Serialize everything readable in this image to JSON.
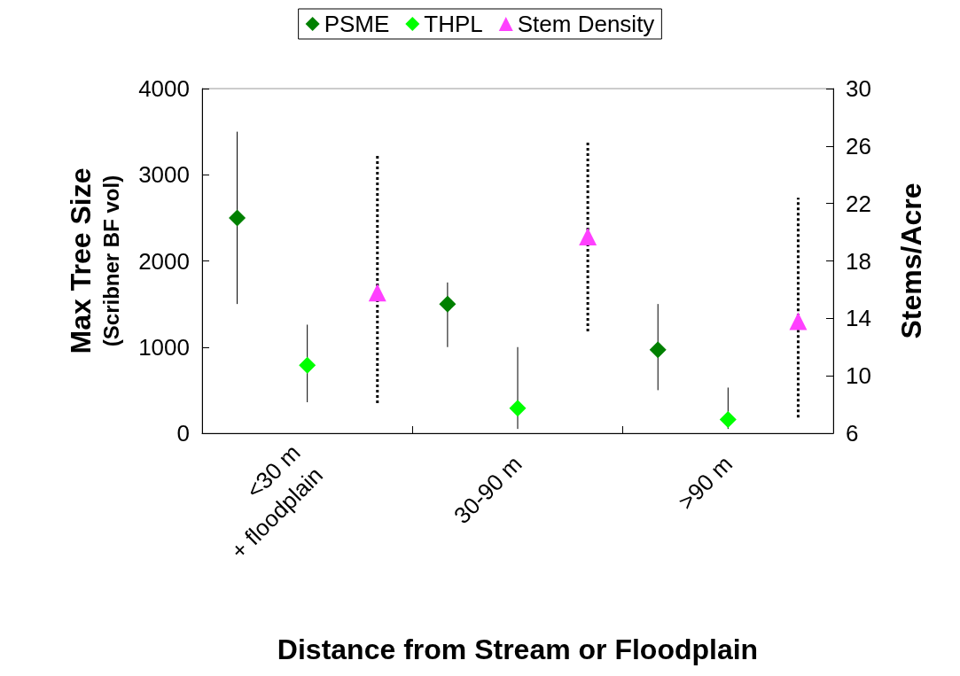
{
  "chart_data": {
    "type": "scatter",
    "xlabel": "Distance from Stream or Floodplain",
    "ylabel": "Max Tree Size\n(Scribner BF vol)",
    "y2label": "Stems/Acre",
    "categories": [
      "<30 m\n+ floodplain",
      "30-90 m",
      ">90 m"
    ],
    "series": [
      {
        "name": "PSME",
        "color": "#008000",
        "marker": "diamond",
        "line_style": "solid",
        "values": [
          2500,
          1500,
          970
        ],
        "errors": [
          [
            1500,
            3500
          ],
          [
            1000,
            1750
          ],
          [
            500,
            1500
          ]
        ]
      },
      {
        "name": "THPL",
        "color": "#00ff00",
        "marker": "diamond",
        "line_style": "solid",
        "values": [
          790,
          290,
          160
        ],
        "errors": [
          [
            360,
            1260
          ],
          [
            50,
            1000
          ],
          [
            50,
            530
          ]
        ]
      },
      {
        "name": "Stem Density",
        "color": "#ff40ff",
        "marker": "triangle",
        "line_style": "dotted",
        "axis": "y2",
        "values": [
          15.8,
          19.7,
          13.8
        ],
        "errors": [
          [
            8.1,
            25.4
          ],
          [
            13.1,
            26.4
          ],
          [
            7.1,
            22.4
          ]
        ]
      }
    ],
    "ylim": [
      0,
      4000
    ],
    "yticks": [
      0,
      1000,
      2000,
      3000,
      4000
    ],
    "y2lim": [
      6,
      30
    ],
    "y2ticks": [
      6,
      10,
      14,
      18,
      22,
      26,
      30
    ],
    "grid": false,
    "legend": "top"
  }
}
